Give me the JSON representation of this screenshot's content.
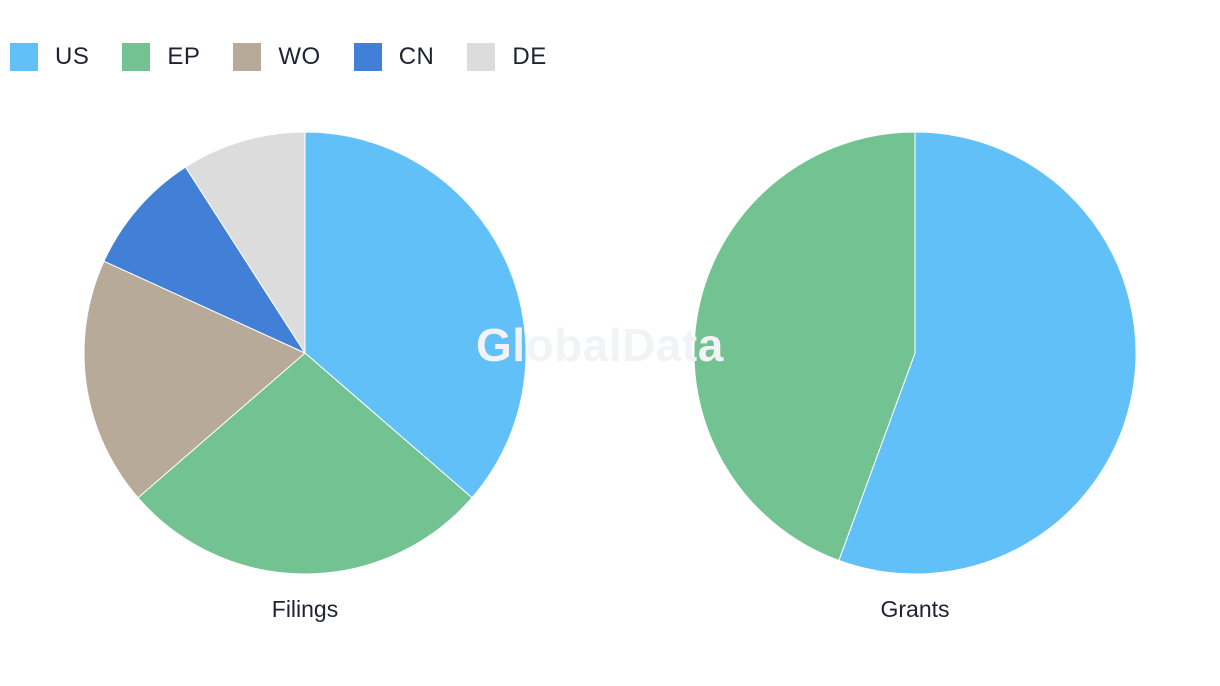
{
  "colors": {
    "US": "#62c0f9",
    "EP": "#73c291",
    "WO": "#b8aa98",
    "CN": "#427fd6",
    "DE": "#dcdcdc"
  },
  "legend": {
    "items": [
      {
        "label": "US",
        "color": "#62c0f9"
      },
      {
        "label": "EP",
        "color": "#73c291"
      },
      {
        "label": "WO",
        "color": "#b8aa98"
      },
      {
        "label": "CN",
        "color": "#427fd6"
      },
      {
        "label": "DE",
        "color": "#dcdcdc"
      }
    ]
  },
  "watermark": "GlobalData",
  "chart_data": [
    {
      "type": "pie",
      "title": "Filings",
      "categories": [
        "US",
        "EP",
        "WO",
        "CN",
        "DE"
      ],
      "values": [
        36.4,
        27.3,
        18.2,
        9.1,
        9.1
      ],
      "colors": [
        "#62c0f9",
        "#73c291",
        "#b8aa98",
        "#427fd6",
        "#dcdcdc"
      ]
    },
    {
      "type": "pie",
      "title": "Grants",
      "categories": [
        "US",
        "EP"
      ],
      "values": [
        55.6,
        44.4
      ],
      "colors": [
        "#62c0f9",
        "#73c291"
      ]
    }
  ]
}
